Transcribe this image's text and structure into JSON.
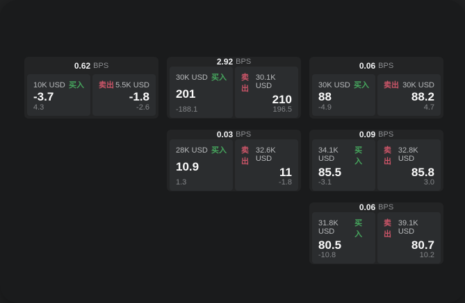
{
  "labels": {
    "bps_suffix": "BPS",
    "buy": "买入",
    "sell": "卖出"
  },
  "colors": {
    "backdrop": "#212223",
    "window_surface": "#1a1b1c",
    "card_background": "#232425",
    "panel_background": "#2b2d2f",
    "buy_green": "#46a55d",
    "sell_red": "#cb5568",
    "primary_text": "#fafafa",
    "muted_text": "#85878a"
  },
  "cards": [
    {
      "row": 1,
      "col": 1,
      "bps": "0.62",
      "buy": {
        "notional": "10K USD",
        "price": "-3.7",
        "delta": "4.3"
      },
      "sell": {
        "notional": "5.5K USD",
        "price": "-1.8",
        "delta": "-2.6"
      }
    },
    {
      "row": 1,
      "col": 2,
      "bps": "2.92",
      "buy": {
        "notional": "30K USD",
        "price": "201",
        "delta": "-188.1"
      },
      "sell": {
        "notional": "30.1K USD",
        "price": "210",
        "delta": "196.5"
      }
    },
    {
      "row": 1,
      "col": 3,
      "bps": "0.06",
      "buy": {
        "notional": "30K USD",
        "price": "88",
        "delta": "-4.9"
      },
      "sell": {
        "notional": "30K USD",
        "price": "88.2",
        "delta": "4.7"
      }
    },
    {
      "row": 2,
      "col": 2,
      "bps": "0.03",
      "buy": {
        "notional": "28K USD",
        "price": "10.9",
        "delta": "1.3"
      },
      "sell": {
        "notional": "32.6K USD",
        "price": "11",
        "delta": "-1.8"
      }
    },
    {
      "row": 2,
      "col": 3,
      "bps": "0.09",
      "buy": {
        "notional": "34.1K USD",
        "price": "85.5",
        "delta": "-3.1"
      },
      "sell": {
        "notional": "32.8K USD",
        "price": "85.8",
        "delta": "3.0"
      }
    },
    {
      "row": 3,
      "col": 3,
      "bps": "0.06",
      "buy": {
        "notional": "31.8K USD",
        "price": "80.5",
        "delta": "-10.8"
      },
      "sell": {
        "notional": "39.1K USD",
        "price": "80.7",
        "delta": "10.2"
      }
    }
  ]
}
